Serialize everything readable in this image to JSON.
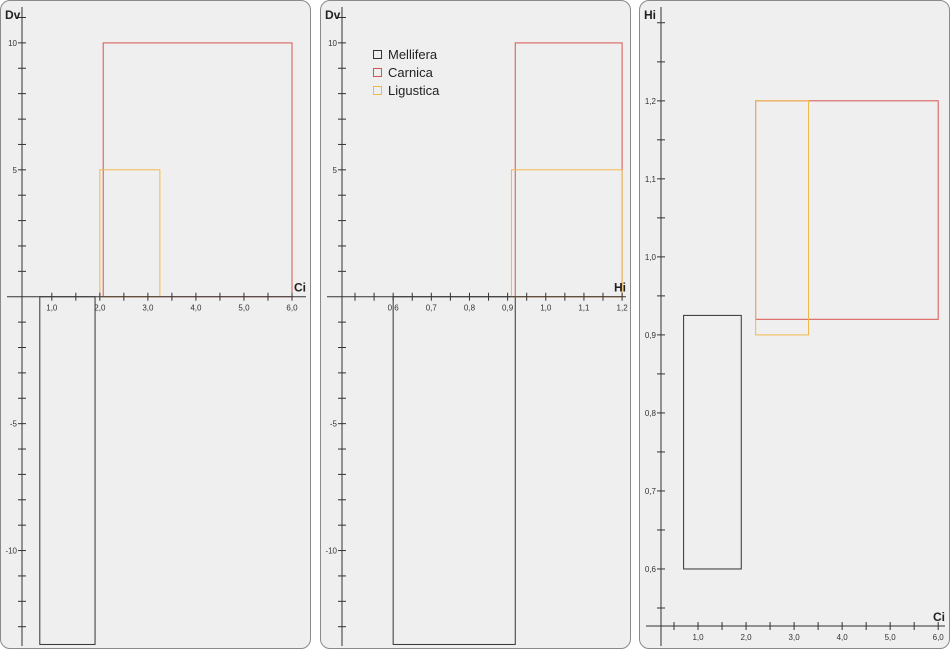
{
  "colors": {
    "Mellifera": "#333333",
    "Carnica": "#d9534f",
    "Ligustica": "#f0b84a"
  },
  "legend": [
    {
      "name": "Mellifera",
      "color": "#333333"
    },
    {
      "name": "Carnica",
      "color": "#d9534f"
    },
    {
      "name": "Ligustica",
      "color": "#f0b84a"
    }
  ],
  "chart_data": [
    {
      "type": "box-ranges",
      "xlabel": "Ci",
      "ylabel": "Dv",
      "xlim": [
        0.65,
        6.25
      ],
      "ylim": [
        -13.8,
        11.1
      ],
      "xticks": {
        "major": [
          1.0,
          2.0,
          3.0,
          4.0,
          5.0,
          6.0
        ],
        "labels": [
          "1,0",
          "2,0",
          "3,0",
          "4,0",
          "5,0",
          "6,0"
        ],
        "minor_step": 0.5
      },
      "yticks": {
        "major": [
          -10,
          -5,
          5,
          10
        ],
        "labels": [
          "-10",
          "-5",
          "5",
          "10"
        ],
        "minor_step": 1
      },
      "series": [
        {
          "name": "Mellifera",
          "x": [
            0.75,
            1.9
          ],
          "y": [
            -13.7,
            0
          ]
        },
        {
          "name": "Carnica",
          "x": [
            2.07,
            6.0
          ],
          "y": [
            0,
            10
          ]
        },
        {
          "name": "Ligustica",
          "x": [
            2.0,
            3.25
          ],
          "y": [
            0,
            5
          ]
        }
      ]
    },
    {
      "type": "box-ranges",
      "xlabel": "Hi",
      "ylabel": "Dv",
      "xlim": [
        0.5,
        1.205
      ],
      "ylim": [
        -13.8,
        11.1
      ],
      "xticks": {
        "major": [
          0.6,
          0.7,
          0.8,
          0.9,
          1.0,
          1.1,
          1.2
        ],
        "labels": [
          "0,6",
          "0,7",
          "0,8",
          "0,9",
          "1,0",
          "1,1",
          "1,2"
        ],
        "minor_step": 0.05
      },
      "yticks": {
        "major": [
          -10,
          -5,
          5,
          10
        ],
        "labels": [
          "-10",
          "-5",
          "5",
          "10"
        ],
        "minor_step": 1
      },
      "series": [
        {
          "name": "Mellifera",
          "x": [
            0.6,
            0.92
          ],
          "y": [
            -13.7,
            0
          ]
        },
        {
          "name": "Carnica",
          "x": [
            0.92,
            1.2
          ],
          "y": [
            0,
            10
          ]
        },
        {
          "name": "Ligustica",
          "x": [
            0.91,
            1.2
          ],
          "y": [
            0,
            5
          ]
        }
      ]
    },
    {
      "type": "box-ranges",
      "xlabel": "Ci",
      "ylabel": "Hi",
      "xlim": [
        0.5,
        6.1
      ],
      "ylim": [
        0.5,
        1.31
      ],
      "xticks": {
        "major": [
          1.0,
          2.0,
          3.0,
          4.0,
          5.0,
          6.0
        ],
        "labels": [
          "1,0",
          "2,0",
          "3,0",
          "4,0",
          "5,0",
          "6,0"
        ],
        "minor_step": 0.5
      },
      "yticks": {
        "major": [
          0.6,
          0.7,
          0.8,
          0.9,
          1.0,
          1.1,
          1.2
        ],
        "labels": [
          "0,6",
          "0,7",
          "0,8",
          "0,9",
          "1,0",
          "1,1",
          "1,2"
        ],
        "minor_step": 0.05
      },
      "series": [
        {
          "name": "Mellifera",
          "x": [
            0.7,
            1.9
          ],
          "y": [
            0.6,
            0.925
          ]
        },
        {
          "name": "Carnica",
          "x": [
            2.2,
            6.0
          ],
          "y": [
            0.92,
            1.2
          ]
        },
        {
          "name": "Ligustica",
          "x": [
            2.2,
            3.3
          ],
          "y": [
            0.9,
            1.2
          ]
        }
      ]
    }
  ]
}
